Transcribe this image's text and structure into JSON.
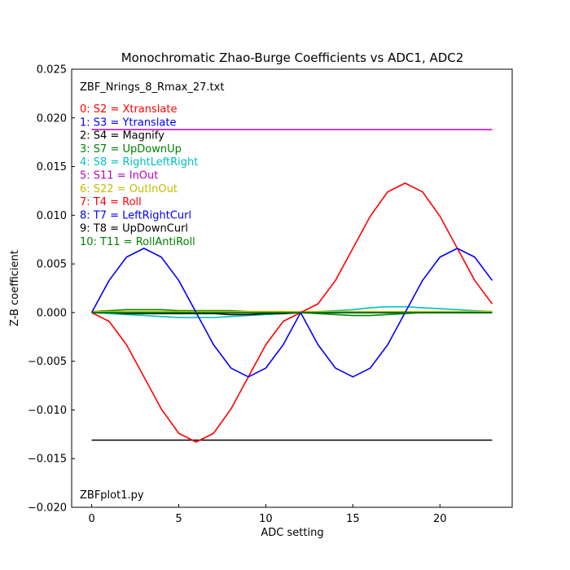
{
  "chart_data": {
    "type": "line",
    "title": "Monochromatic Zhao-Burge Coefficients vs ADC1, ADC2",
    "xlabel": "ADC setting",
    "ylabel": "Z-B coefficient",
    "xlim": [
      -1.15,
      24.15
    ],
    "ylim": [
      -0.02,
      0.025
    ],
    "xticks": [
      0,
      5,
      10,
      15,
      20
    ],
    "xtick_labels": [
      "0",
      "5",
      "10",
      "15",
      "20"
    ],
    "yticks": [
      -0.02,
      -0.015,
      -0.01,
      -0.005,
      0.0,
      0.005,
      0.01,
      0.015,
      0.02,
      0.025
    ],
    "ytick_labels": [
      "−0.020",
      "−0.015",
      "−0.010",
      "−0.005",
      "0.000",
      "0.005",
      "0.010",
      "0.015",
      "0.020",
      "0.025"
    ],
    "grid": false,
    "legend_position": "upper-left",
    "annotations": {
      "file_label": "ZBF_Nrings_8_Rmax_27.txt",
      "script_label": "ZBFplot1.py"
    },
    "x": [
      0,
      1,
      2,
      3,
      4,
      5,
      6,
      7,
      8,
      9,
      10,
      11,
      12,
      13,
      14,
      15,
      16,
      17,
      18,
      19,
      20,
      21,
      22,
      23
    ],
    "series": [
      {
        "name": "0: S2 = Xtranslate",
        "color": "#ff0000",
        "values": [
          0,
          0,
          0,
          0,
          0,
          0,
          0,
          0,
          0,
          0,
          0,
          0,
          0,
          0,
          0,
          0,
          0,
          0,
          0,
          0,
          0,
          0,
          0,
          0
        ]
      },
      {
        "name": "1: S3 = Ytranslate",
        "color": "#0000ff",
        "values": [
          0,
          0,
          0,
          0,
          0,
          0,
          0,
          0,
          0,
          0,
          0,
          0,
          0,
          0,
          0,
          0,
          0,
          0,
          0,
          0,
          0,
          0,
          0,
          0
        ]
      },
      {
        "name": "2: S4 = Magnify",
        "color": "#000000",
        "values": [
          -0.0131,
          -0.0131,
          -0.0131,
          -0.0131,
          -0.0131,
          -0.0131,
          -0.0131,
          -0.0131,
          -0.0131,
          -0.0131,
          -0.0131,
          -0.0131,
          -0.0131,
          -0.0131,
          -0.0131,
          -0.0131,
          -0.0131,
          -0.0131,
          -0.0131,
          -0.0131,
          -0.0131,
          -0.0131,
          -0.0131,
          -0.0131
        ]
      },
      {
        "name": "3: S7 = UpDownUp",
        "color": "#008000",
        "values": [
          0.0001,
          0.0002,
          0.0003,
          0.0003,
          0.0003,
          0.0002,
          0.0002,
          0.0002,
          0.0002,
          0.0001,
          0.0001,
          0.0001,
          0.0,
          -0.0001,
          -0.0002,
          -0.0003,
          -0.0003,
          -0.0002,
          -0.0001,
          0.0,
          0.0,
          0.0,
          0.0001,
          0.0001
        ]
      },
      {
        "name": "4: S8 = RightLeftRight",
        "color": "#00bfbf",
        "values": [
          0.0,
          -0.0001,
          -0.0002,
          -0.0003,
          -0.0004,
          -0.0005,
          -0.0005,
          -0.0005,
          -0.0004,
          -0.0003,
          -0.0002,
          -0.0001,
          0.0,
          0.0001,
          0.0002,
          0.0003,
          0.0005,
          0.0006,
          0.0006,
          0.0005,
          0.0004,
          0.0003,
          0.0002,
          0.0001
        ]
      },
      {
        "name": "5: S11 = InOut",
        "color": "#bf00bf",
        "values": [
          0.0188,
          0.0188,
          0.0188,
          0.0188,
          0.0188,
          0.0188,
          0.0188,
          0.0188,
          0.0188,
          0.0188,
          0.0188,
          0.0188,
          0.0188,
          0.0188,
          0.0188,
          0.0188,
          0.0188,
          0.0188,
          0.0188,
          0.0188,
          0.0188,
          0.0188,
          0.0188,
          0.0188
        ]
      },
      {
        "name": "6: S22 = OutInOut",
        "color": "#bfbf00",
        "values": [
          0.0001,
          0.0001,
          0.0001,
          0.0001,
          0.0001,
          0.0001,
          0.0001,
          0.0001,
          0.0001,
          0.0001,
          0.0001,
          0.0001,
          0.0001,
          0.0001,
          0.0001,
          0.0001,
          0.0001,
          0.0001,
          0.0001,
          0.0001,
          0.0001,
          0.0001,
          0.0001,
          0.0001
        ]
      },
      {
        "name": "7: T4 = Roll",
        "color": "#ff0000",
        "values": [
          0.0,
          -0.0009,
          -0.0033,
          -0.0066,
          -0.0099,
          -0.0124,
          -0.0133,
          -0.0124,
          -0.0099,
          -0.0066,
          -0.0033,
          -0.0009,
          0.0,
          0.0009,
          0.0033,
          0.0066,
          0.0099,
          0.0124,
          0.0133,
          0.0124,
          0.0099,
          0.0066,
          0.0033,
          0.0009
        ]
      },
      {
        "name": "8: T7 = LeftRightCurl",
        "color": "#0000ff",
        "values": [
          0.0,
          0.0033,
          0.0057,
          0.0066,
          0.0057,
          0.0033,
          0.0,
          -0.0033,
          -0.0057,
          -0.0066,
          -0.0057,
          -0.0033,
          0.0,
          -0.0033,
          -0.0057,
          -0.0066,
          -0.0057,
          -0.0033,
          0.0,
          0.0033,
          0.0057,
          0.0066,
          0.0057,
          0.0033
        ]
      },
      {
        "name": "9: T8 = UpDownCurl",
        "color": "#000000",
        "values": [
          0.0,
          0.0,
          -0.0001,
          -0.0001,
          -0.0001,
          -0.0001,
          -0.0001,
          -0.0001,
          -0.0002,
          -0.0002,
          -0.0001,
          -0.0001,
          0.0,
          0.0,
          0.0,
          0.0,
          0.0,
          0.0,
          0.0,
          0.0,
          0.0,
          0.0,
          0.0,
          0.0
        ]
      },
      {
        "name": "10: T11 = RollAntiRoll",
        "color": "#008000",
        "values": [
          0.0,
          0.0,
          0.0,
          0.0,
          0.0,
          0.0,
          0.0,
          0.0,
          0.0,
          0.0,
          0.0,
          0.0,
          0.0,
          0.0,
          0.0,
          0.0,
          0.0,
          0.0,
          0.0,
          0.0,
          0.0,
          0.0,
          0.0,
          0.0
        ]
      }
    ]
  }
}
